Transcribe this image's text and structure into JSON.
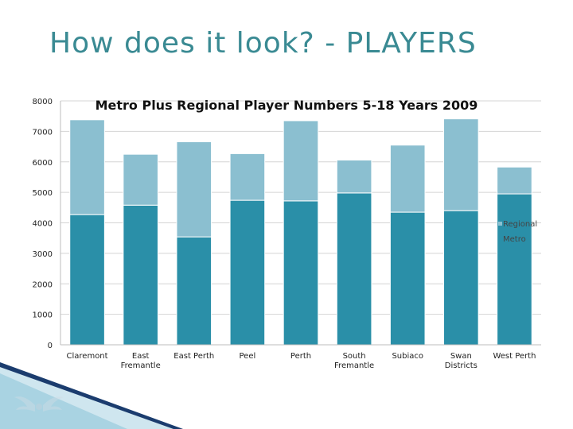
{
  "slide": {
    "title": "How does it look? - PLAYERS"
  },
  "chart_data": {
    "type": "bar",
    "stacked": true,
    "title": "Metro Plus Regional Player Numbers 5-18 Years 2009",
    "xlabel": "",
    "ylabel": "",
    "ylim": [
      0,
      8000
    ],
    "yticks": [
      0,
      1000,
      2000,
      3000,
      4000,
      5000,
      6000,
      7000,
      8000
    ],
    "grid": true,
    "legend_position": "right",
    "categories": [
      "Claremont",
      "East Fremantle",
      "East Perth",
      "Peel",
      "Perth",
      "South Fremantle",
      "Subiaco",
      "Swan Districts",
      "West Perth"
    ],
    "category_lines": [
      [
        "Claremont"
      ],
      [
        "East",
        "Fremantle"
      ],
      [
        "East Perth"
      ],
      [
        "Peel"
      ],
      [
        "Perth"
      ],
      [
        "South",
        "Fremantle"
      ],
      [
        "Subiaco"
      ],
      [
        "Swan",
        "Districts"
      ],
      [
        "West Perth"
      ]
    ],
    "series": [
      {
        "name": "Metro",
        "color": "#2a8fa8",
        "values": [
          4270,
          4580,
          3540,
          4740,
          4720,
          4980,
          4350,
          4400,
          4950
        ]
      },
      {
        "name": "Regional",
        "color": "#8bbfd0",
        "values": [
          3110,
          1670,
          3120,
          1530,
          2630,
          1080,
          2200,
          3010,
          880
        ]
      }
    ]
  }
}
